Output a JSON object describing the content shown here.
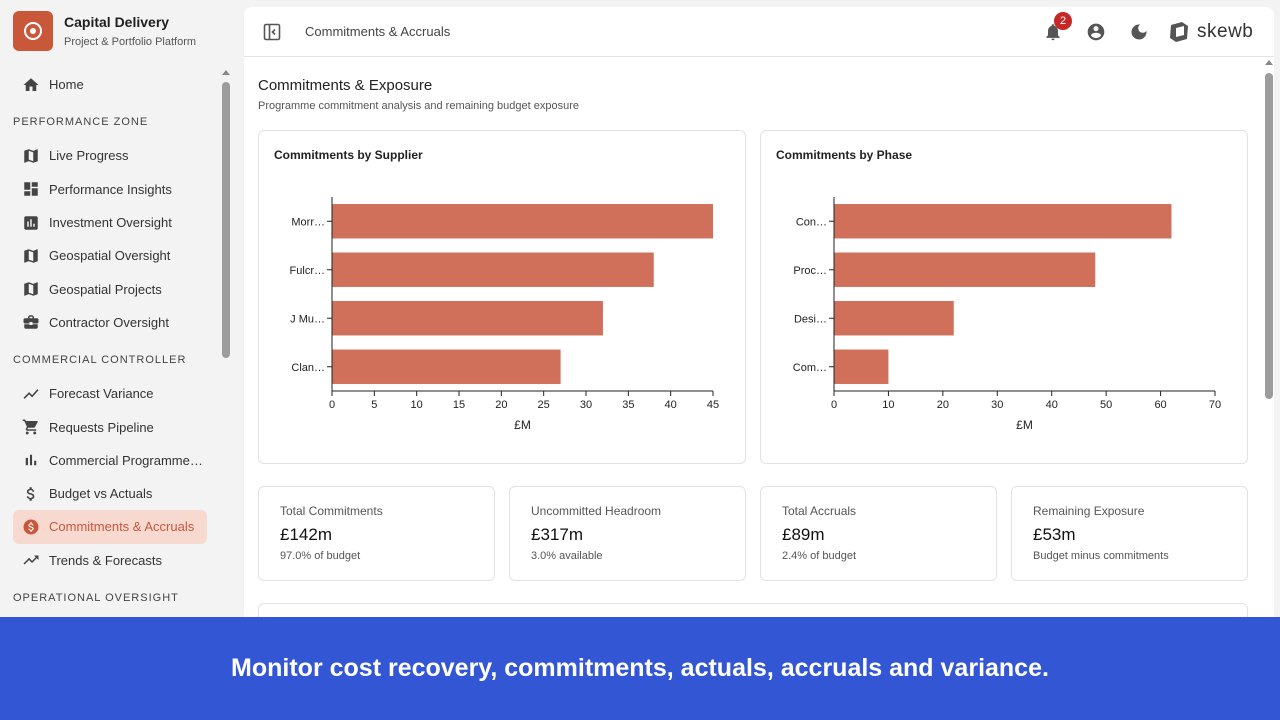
{
  "brand": {
    "title": "Capital Delivery",
    "subtitle": "Project & Portfolio Platform"
  },
  "sidebar": {
    "home": "Home",
    "sections": [
      {
        "title": "PERFORMANCE ZONE",
        "items": [
          {
            "label": "Live Progress",
            "icon": "map-icon"
          },
          {
            "label": "Performance Insights",
            "icon": "dashboard-icon"
          },
          {
            "label": "Investment Oversight",
            "icon": "bar-chart-icon"
          },
          {
            "label": "Geospatial Oversight",
            "icon": "map-icon"
          },
          {
            "label": "Geospatial Projects",
            "icon": "map-icon"
          },
          {
            "label": "Contractor Oversight",
            "icon": "briefcase-icon"
          }
        ]
      },
      {
        "title": "COMMERCIAL CONTROLLER",
        "items": [
          {
            "label": "Forecast Variance",
            "icon": "trend-icon"
          },
          {
            "label": "Requests Pipeline",
            "icon": "cart-icon"
          },
          {
            "label": "Commercial Programme…",
            "icon": "bar-chart-icon"
          },
          {
            "label": "Budget vs Actuals",
            "icon": "dollar-icon"
          },
          {
            "label": "Commitments & Accruals",
            "icon": "dollar-circle-icon",
            "active": true
          },
          {
            "label": "Trends & Forecasts",
            "icon": "trend-icon"
          }
        ]
      },
      {
        "title": "OPERATIONAL OVERSIGHT",
        "items": []
      }
    ]
  },
  "header": {
    "breadcrumb": "Commitments & Accruals",
    "notifications": "2",
    "logo_text": "skewb"
  },
  "page": {
    "title": "Commitments & Exposure",
    "subtitle": "Programme commitment analysis and remaining budget exposure"
  },
  "charts": {
    "supplier": {
      "title": "Commitments by Supplier"
    },
    "phase": {
      "title": "Commitments by Phase"
    }
  },
  "chart_data": [
    {
      "type": "bar",
      "orientation": "horizontal",
      "title": "Commitments by Supplier",
      "categories": [
        "Morr…",
        "Fulcr…",
        "J Mu…",
        "Clan…"
      ],
      "values": [
        45,
        38,
        32,
        27
      ],
      "xlabel": "£M",
      "xlim": [
        0,
        45
      ],
      "xticks": [
        0,
        5,
        10,
        15,
        20,
        25,
        30,
        35,
        40,
        45
      ],
      "color": "#d0705a"
    },
    {
      "type": "bar",
      "orientation": "horizontal",
      "title": "Commitments by Phase",
      "categories": [
        "Con…",
        "Proc…",
        "Desi…",
        "Com…"
      ],
      "values": [
        62,
        48,
        22,
        10
      ],
      "xlabel": "£M",
      "xlim": [
        0,
        70
      ],
      "xticks": [
        0,
        10,
        20,
        30,
        40,
        50,
        60,
        70
      ],
      "color": "#d0705a"
    }
  ],
  "kpis": [
    {
      "label": "Total Commitments",
      "value": "£142m",
      "note": "97.0% of budget"
    },
    {
      "label": "Uncommitted Headroom",
      "value": "£317m",
      "note": "3.0% available"
    },
    {
      "label": "Total Accruals",
      "value": "£89m",
      "note": "2.4% of budget"
    },
    {
      "label": "Remaining Exposure",
      "value": "£53m",
      "note": "Budget minus commitments"
    }
  ],
  "banner": {
    "text": "Monitor cost recovery, commitments, actuals, accruals and variance."
  }
}
